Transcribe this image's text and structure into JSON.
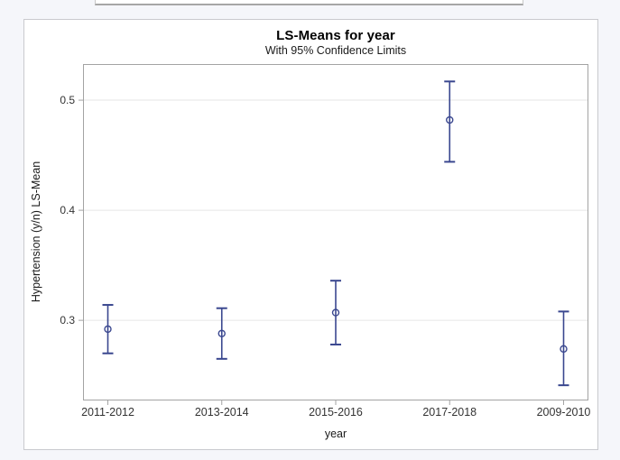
{
  "chart_data": {
    "type": "scatter",
    "title": "LS-Means for year",
    "subtitle": "With 95% Confidence Limits",
    "xlabel": "year",
    "ylabel": "Hypertension (y/n) LS-Mean",
    "categories": [
      "2011-2012",
      "2013-2014",
      "2015-2016",
      "2017-2018",
      "2009-2010"
    ],
    "series": [
      {
        "name": "Hypertension (y/n) LS-Mean",
        "means": [
          0.292,
          0.288,
          0.307,
          0.482,
          0.274
        ],
        "lower_cl": [
          0.27,
          0.265,
          0.278,
          0.444,
          0.241
        ],
        "upper_cl": [
          0.314,
          0.311,
          0.336,
          0.517,
          0.308
        ]
      }
    ],
    "yticks": [
      0.3,
      0.4,
      0.5
    ],
    "ytick_labels": [
      "0.3",
      "0.4",
      "0.5"
    ],
    "ylim": [
      0.228,
      0.532
    ],
    "grid": "horizontal-at-yticks",
    "legend": "none",
    "marker": "open-circle",
    "error_bars": "95% confidence limit whiskers with end caps",
    "colors": {
      "data": "#3a478f",
      "axis": "#a3a3a3",
      "gridline": "#e6e6e6",
      "tick_text": "#333333",
      "title_text": "#000000",
      "plot_background": "#ffffff",
      "panel_background": "#ffffff",
      "page_background": "#f5f6fa"
    }
  }
}
